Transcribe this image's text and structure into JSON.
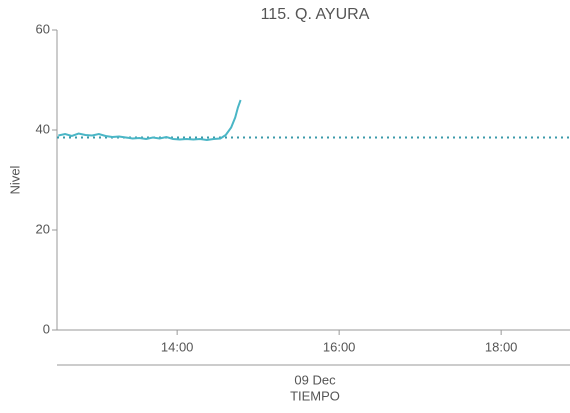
{
  "chart_data": {
    "type": "line",
    "title": "115. Q. AYURA",
    "y_label": "Nivel",
    "x_label": "TIEMPO",
    "date_label": "09 Dec",
    "x": [
      "12:32",
      "12:37",
      "12:42",
      "12:47",
      "12:52",
      "12:57",
      "13:02",
      "13:07",
      "13:12",
      "13:17",
      "13:22",
      "13:27",
      "13:32",
      "13:37",
      "13:42",
      "13:47",
      "13:52",
      "13:57",
      "14:02",
      "14:07",
      "14:12",
      "14:17",
      "14:22",
      "14:27",
      "14:32",
      "14:36",
      "14:40",
      "14:43",
      "14:45",
      "14:47"
    ],
    "series": [
      {
        "name": "Nivel",
        "color": "#4ab6c6",
        "values": [
          38.9,
          39.2,
          38.8,
          39.3,
          39.0,
          38.9,
          39.2,
          38.8,
          38.6,
          38.7,
          38.5,
          38.3,
          38.4,
          38.2,
          38.5,
          38.3,
          38.6,
          38.2,
          38.1,
          38.2,
          38.1,
          38.2,
          38.0,
          38.2,
          38.3,
          39.0,
          40.5,
          42.5,
          44.5,
          46.0
        ]
      }
    ],
    "reference_line": {
      "value": 38.5,
      "color": "#3a9aaa",
      "style": "dotted"
    },
    "xlim": [
      "12:31",
      "18:51"
    ],
    "xticks": [
      "14:00",
      "16:00",
      "18:00"
    ],
    "ylim": [
      0,
      60
    ],
    "yticks": [
      0,
      20,
      40,
      60
    ],
    "grid": false
  }
}
